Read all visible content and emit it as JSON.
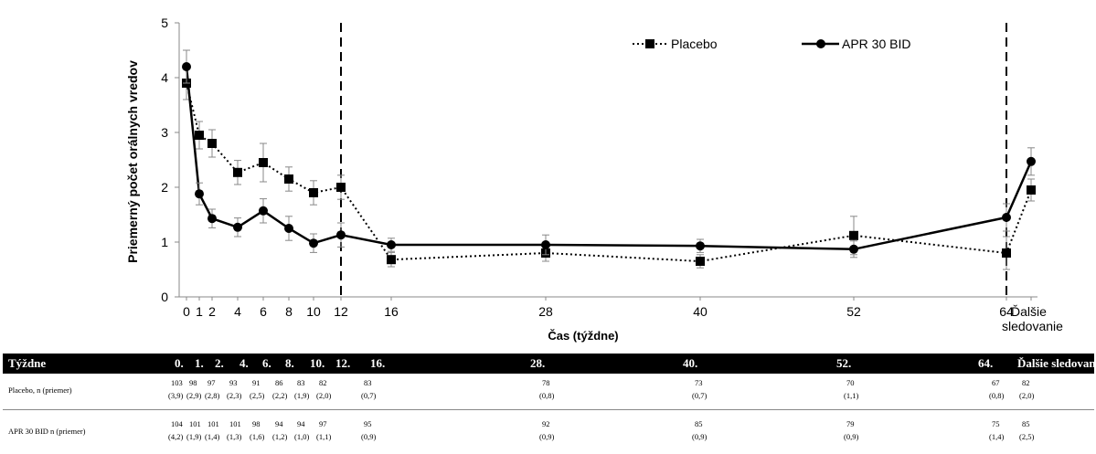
{
  "chart_data": {
    "type": "line",
    "ylabel": "Priemerný počet orálnych vredov",
    "xlabel": "Čas (týždne)",
    "ylim": [
      0,
      5
    ],
    "yticks": [
      "0",
      "1",
      "2",
      "3",
      "4",
      "5"
    ],
    "xticks": [
      "0",
      "1",
      "2",
      "4",
      "6",
      "8",
      "10",
      "12",
      "16",
      "28",
      "40",
      "52",
      "64",
      "Ďalšie sledovanie"
    ],
    "vlines_at": [
      "12",
      "64"
    ],
    "legend_position": "top-right",
    "series": [
      {
        "name": "Placebo",
        "style": "dotted",
        "marker": "square",
        "x": [
          "0",
          "1",
          "2",
          "4",
          "6",
          "8",
          "10",
          "12",
          "16",
          "28",
          "40",
          "52",
          "64",
          "Ďalšie sledovanie"
        ],
        "y": [
          3.9,
          2.95,
          2.8,
          2.27,
          2.45,
          2.15,
          1.9,
          2.0,
          0.68,
          0.8,
          0.65,
          1.12,
          0.8,
          1.95
        ],
        "err": [
          0.3,
          0.25,
          0.25,
          0.22,
          0.35,
          0.22,
          0.22,
          0.22,
          0.13,
          0.15,
          0.12,
          0.35,
          0.3,
          0.2
        ]
      },
      {
        "name": "APR 30 BID",
        "style": "solid",
        "marker": "circle",
        "x": [
          "0",
          "1",
          "2",
          "4",
          "6",
          "8",
          "10",
          "12",
          "16",
          "28",
          "40",
          "52",
          "64",
          "Ďalšie sledovanie"
        ],
        "y": [
          4.2,
          1.88,
          1.43,
          1.27,
          1.57,
          1.25,
          0.98,
          1.13,
          0.95,
          0.95,
          0.93,
          0.87,
          1.45,
          2.47
        ],
        "err": [
          0.3,
          0.2,
          0.17,
          0.17,
          0.22,
          0.22,
          0.17,
          0.22,
          0.12,
          0.18,
          0.12,
          0.15,
          0.25,
          0.25
        ]
      }
    ],
    "colors": {
      "line": "#000000",
      "axis": "#888888"
    }
  },
  "table": {
    "header": [
      "Týždne",
      "0.",
      "1.",
      "2.",
      "4.",
      "6.",
      "8.",
      "10.",
      "12.",
      "16.",
      "28.",
      "40.",
      "52.",
      "64.",
      "Ďalšie sledovanie"
    ],
    "rows": [
      {
        "label": "Placebo, n (priemer)",
        "n": [
          "103",
          "98",
          "97",
          "93",
          "91",
          "86",
          "83",
          "82",
          "83",
          "78",
          "73",
          "70",
          "67",
          "82"
        ],
        "mean": [
          "(3,9)",
          "(2,9)",
          "(2,8)",
          "(2,3)",
          "(2,5)",
          "(2,2)",
          "(1,9)",
          "(2,0)",
          "(0,7)",
          "(0,8)",
          "(0,7)",
          "(1,1)",
          "(0,8)",
          "(2,0)"
        ]
      },
      {
        "label": "APR 30 BID n (priemer)",
        "n": [
          "104",
          "101",
          "101",
          "101",
          "98",
          "94",
          "94",
          "97",
          "95",
          "92",
          "85",
          "79",
          "75",
          "85"
        ],
        "mean": [
          "(4,2)",
          "(1,9)",
          "(1,4)",
          "(1,3)",
          "(1,6)",
          "(1,2)",
          "(1,0)",
          "(1,1)",
          "(0,9)",
          "(0,9)",
          "(0,9)",
          "(0,9)",
          "(1,4)",
          "(2,5)"
        ]
      }
    ]
  }
}
